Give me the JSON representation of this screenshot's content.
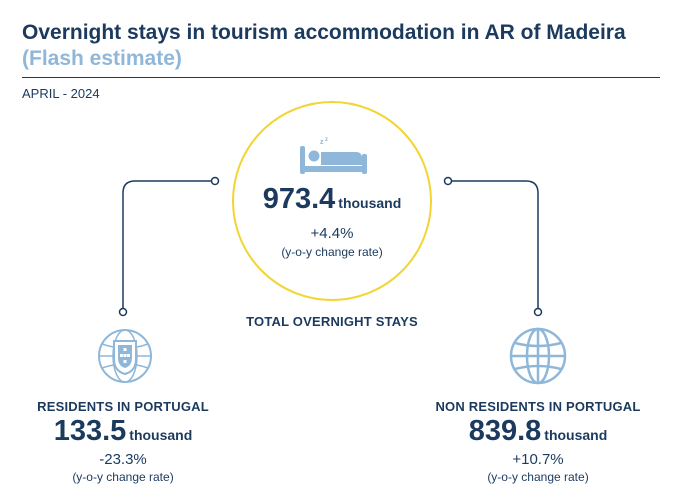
{
  "header": {
    "title": "Overnight stays in tourism accommodation in AR of Madeira",
    "subtitle": "(Flash estimate)",
    "period": "APRIL - 2024"
  },
  "total": {
    "value": "973.4",
    "unit": "thousand",
    "rate": "+4.4%",
    "rate_note": "(y-o-y change rate)",
    "label": "TOTAL OVERNIGHT STAYS",
    "icon": "bed-sleep-icon"
  },
  "residents": {
    "label": "RESIDENTS IN PORTUGAL",
    "value": "133.5",
    "unit": "thousand",
    "rate": "-23.3%",
    "rate_note": "(y-o-y change rate)",
    "icon": "portugal-coat-of-arms-icon"
  },
  "non_residents": {
    "label": "NON RESIDENTS IN PORTUGAL",
    "value": "839.8",
    "unit": "thousand",
    "rate": "+10.7%",
    "rate_note": "(y-o-y change rate)",
    "icon": "globe-icon"
  },
  "colors": {
    "navy": "#1b3a5e",
    "light_blue": "#8fb7d9",
    "yellow": "#f2d432"
  }
}
